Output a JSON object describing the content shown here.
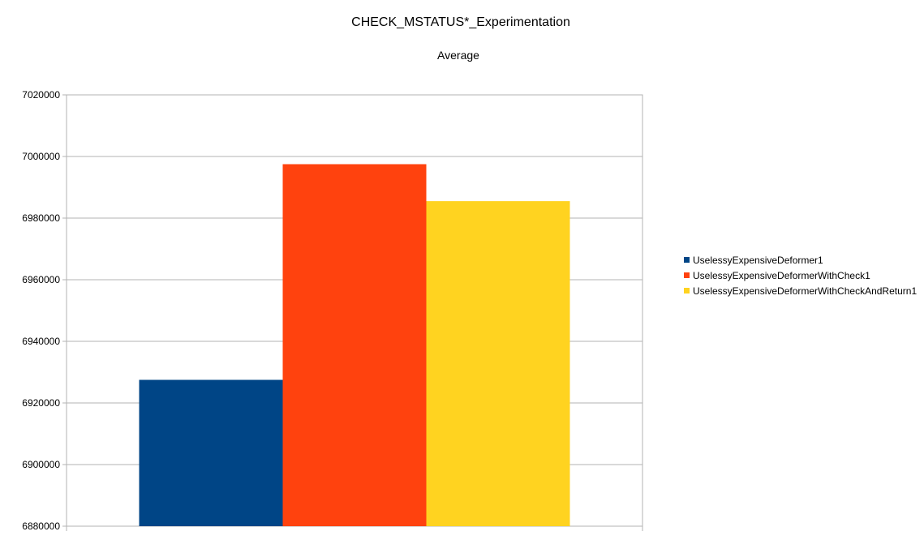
{
  "chart_data": {
    "type": "bar",
    "title": "CHECK_MSTATUS*_Experimentation",
    "subtitle": "Average",
    "xlabel": "",
    "ylabel": "",
    "ylim": [
      6880000,
      7020000
    ],
    "yticks": [
      "7020000",
      "7000000",
      "6980000",
      "6960000",
      "6940000",
      "6920000",
      "6900000",
      "6880000"
    ],
    "grid": true,
    "legend_position": "right",
    "categories": [
      ""
    ],
    "series": [
      {
        "name": "UselessyExpensiveDeformer1",
        "values": [
          6927500
        ],
        "color": "#004586"
      },
      {
        "name": "UselessyExpensiveDeformerWithCheck1",
        "values": [
          6997500
        ],
        "color": "#ff420e"
      },
      {
        "name": "UselessyExpensiveDeformerWithCheckAndReturn1",
        "values": [
          6985500
        ],
        "color": "#ffd320"
      }
    ]
  }
}
